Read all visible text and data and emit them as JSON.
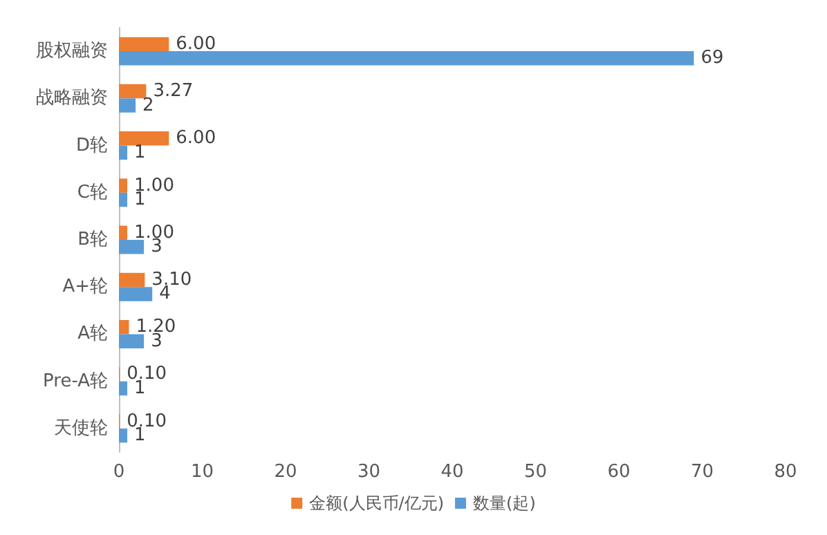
{
  "chart_data": {
    "type": "bar",
    "orientation": "horizontal",
    "categories": [
      "股权融资",
      "战略融资",
      "D轮",
      "C轮",
      "B轮",
      "A+轮",
      "A轮",
      "Pre-A轮",
      "天使轮"
    ],
    "series": [
      {
        "name": "金额(人民币/亿元)",
        "color": "#ed7d31",
        "values": [
          6.0,
          3.27,
          6.0,
          1.0,
          1.0,
          3.1,
          1.2,
          0.1,
          0.1
        ],
        "value_labels": [
          "6.00",
          "3.27",
          "6.00",
          "1.00",
          "1.00",
          "3.10",
          "1.20",
          "0.10",
          "0.10"
        ]
      },
      {
        "name": "数量(起)",
        "color": "#5b9bd5",
        "values": [
          69,
          2,
          1,
          1,
          3,
          4,
          3,
          1,
          1
        ],
        "value_labels": [
          "69",
          "2",
          "1",
          "1",
          "3",
          "4",
          "3",
          "1",
          "1"
        ]
      }
    ],
    "xlim": [
      0,
      80
    ],
    "xticks": [
      0,
      10,
      20,
      30,
      40,
      50,
      60,
      70,
      80
    ],
    "grid": false,
    "legend": "bottom"
  }
}
